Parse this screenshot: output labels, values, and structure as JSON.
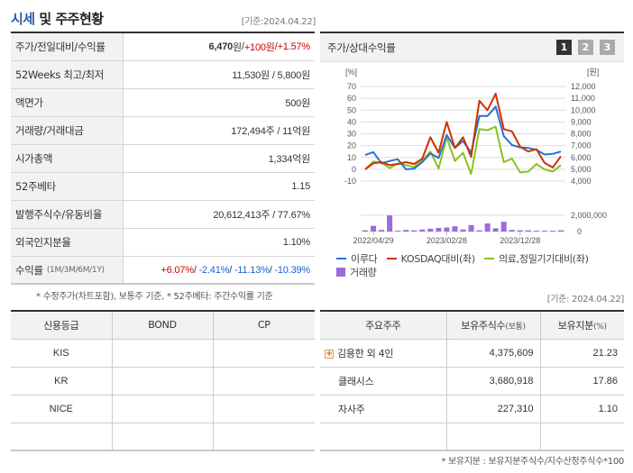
{
  "header": {
    "title_accent": "시세",
    "title_rest": " 및 주주현황",
    "basis": "[기준:2024.04.22]"
  },
  "info_table": {
    "rows": [
      {
        "label": "주가/전일대비/수익률",
        "price": "6,470",
        "price_unit": "원",
        "sep1": " / ",
        "change": "+100원",
        "sep2": " / ",
        "rate": "+1.57%"
      },
      {
        "label": "52Weeks 최고/최저",
        "value": "11,530원 / 5,800원"
      },
      {
        "label": "액면가",
        "value": "500원"
      },
      {
        "label": "거래량/거래대금",
        "value": "172,494주 / 11억원"
      },
      {
        "label": "시가총액",
        "value": "1,334억원"
      },
      {
        "label": "52주베타",
        "value": "1.15"
      },
      {
        "label": "발행주식수/유동비율",
        "value": "20,612,413주 / 77.67%"
      },
      {
        "label": "외국인지분율",
        "value": "1.10%"
      },
      {
        "label": "수익률",
        "label_sub": "(1M/3M/6M/1Y)",
        "r1m": "+6.07%",
        "r3m": "-2.41%",
        "r6m": "-11.13%",
        "r1y": "-10.39%"
      }
    ],
    "note": "* 수정주가(차트포함), 보통주 기준, * 52주베타: 주간수익률 기준"
  },
  "chart_panel": {
    "title": "주가/상대수익률",
    "pages": [
      "1",
      "2",
      "3"
    ],
    "active_page": "1"
  },
  "chart_data": {
    "type": "line",
    "title": "주가/상대수익률",
    "left_axis_label": "[%]",
    "right_axis_label": "[원]",
    "ylim": [
      -10,
      70
    ],
    "y_ticks": [
      "70",
      "60",
      "50",
      "40",
      "30",
      "20",
      "10",
      "0",
      "-10"
    ],
    "y2_ticks": [
      "12,000",
      "11,000",
      "10,000",
      "9,000",
      "8,000",
      "7,000",
      "6,000",
      "5,000",
      "4,000"
    ],
    "volume_ticks": [
      "2,000,000",
      "0"
    ],
    "x_tick_labels": [
      "2022/04/29",
      "2023/02/28",
      "2023/12/28"
    ],
    "series": [
      {
        "name": "이루다",
        "color": "#2a6fd6",
        "values": [
          12,
          14.5,
          5,
          7,
          8.5,
          0,
          0.5,
          6,
          13.5,
          9.5,
          29,
          18,
          24,
          14,
          45,
          45,
          53,
          28,
          20.5,
          18.5,
          18,
          16.5,
          12.5,
          13,
          15
        ]
      },
      {
        "name": "KOSDAQ대비(좌)",
        "color": "#cc3300",
        "values": [
          0,
          5,
          6,
          3.5,
          4.5,
          6,
          4.5,
          9,
          27,
          14,
          40,
          18,
          27,
          10.5,
          58,
          50,
          64,
          34,
          32,
          19,
          15,
          17,
          5.5,
          1.5,
          11
        ]
      },
      {
        "name": "의료,정밀기기대비(좌)",
        "color": "#8cc21e",
        "values": [
          0,
          6.5,
          5.5,
          1,
          5,
          3.5,
          2,
          7.5,
          15,
          0.5,
          27,
          7,
          14,
          -4,
          34,
          33,
          36,
          6,
          9,
          -2.5,
          -2,
          4.5,
          0,
          -2,
          3.5
        ]
      },
      {
        "name": "거래량",
        "color": "#9b6cd6",
        "values": [
          150000,
          700000,
          200000,
          2000000,
          100000,
          200000,
          150000,
          250000,
          350000,
          450000,
          500000,
          650000,
          250000,
          800000,
          150000,
          1000000,
          400000,
          1200000,
          200000,
          150000,
          150000,
          100000,
          100000,
          100000,
          150000
        ]
      }
    ],
    "legend": [
      "이루다",
      "KOSDAQ대비(좌)",
      "의료,정밀기기대비(좌)",
      "거래량"
    ],
    "legend_position": "bottom",
    "grid": true
  },
  "credit_table": {
    "headers": [
      "신용등급",
      "BOND",
      "CP"
    ],
    "rows": [
      [
        "KIS",
        "",
        ""
      ],
      [
        "KR",
        "",
        ""
      ],
      [
        "NICE",
        "",
        ""
      ],
      [
        "",
        "",
        ""
      ]
    ]
  },
  "holders_table": {
    "basis": "[기준: 2024.04.22]",
    "headers": [
      "주요주주",
      "보유주식수",
      "(보통)",
      "보유지분",
      "(%)"
    ],
    "rows": [
      {
        "name": "김용한 외 4인",
        "shares": "4,375,609",
        "pct": "21.23",
        "expandable": true
      },
      {
        "name": "클래시스",
        "shares": "3,680,918",
        "pct": "17.86",
        "expandable": false
      },
      {
        "name": "자사주",
        "shares": "227,310",
        "pct": "1.10",
        "expandable": false
      },
      {
        "name": "",
        "shares": "",
        "pct": "",
        "expandable": false
      }
    ],
    "note": "* 보유지분 : 보유지분주식수/지수산정주식수*100"
  }
}
